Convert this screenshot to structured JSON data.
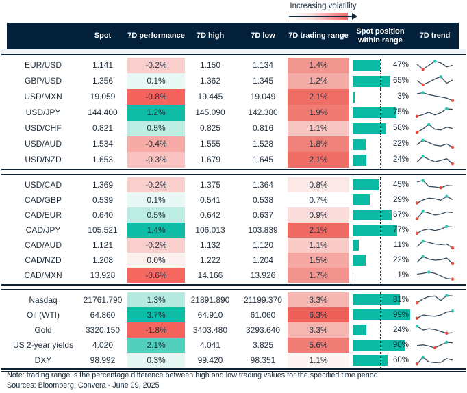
{
  "legend": {
    "label": "Increasing volatility"
  },
  "colors": {
    "header_bg": "#03213a",
    "bar_teal": "#0cbaa4",
    "spark_line": "#33475a",
    "dot_min": "#e74c3c",
    "dot_max": "#2cc6b2",
    "strong_teal": "#0fbca6",
    "strong_red": "#f4635c"
  },
  "chart_data": {
    "type": "table",
    "columns": [
      "",
      "Spot",
      "7D performance",
      "7D high",
      "7D low",
      "7D trading range",
      "Spot position within range",
      "7D trend"
    ],
    "groups": [
      {
        "rows": [
          {
            "label": "EUR/USD",
            "spot": "1.141",
            "perf": "-0.2%",
            "perf_color": "#f9cfce",
            "high": "1.150",
            "low": "1.134",
            "range": "1.4%",
            "range_color": "#f0968f",
            "position_pct": 47,
            "position_label": "47%",
            "trend": [
              0.6,
              0.12,
              0.5,
              0.9,
              0.74,
              0.35,
              0.5
            ],
            "trend_min": 1,
            "trend_max": 3
          },
          {
            "label": "GBP/USD",
            "spot": "1.356",
            "perf": "0.1%",
            "perf_color": "#e8f8f4",
            "high": "1.362",
            "low": "1.345",
            "range": "1.2%",
            "range_color": "#f3aba5",
            "position_pct": 65,
            "position_label": "65%",
            "trend": [
              0.55,
              0.15,
              0.4,
              0.7,
              0.92,
              0.3,
              0.6
            ],
            "trend_min": 1,
            "trend_max": 4
          },
          {
            "label": "USD/MXN",
            "spot": "19.059",
            "perf": "-0.8%",
            "perf_color": "#f4635c",
            "high": "19.445",
            "low": "19.049",
            "range": "2.1%",
            "range_color": "#ee6e66",
            "position_pct": 3,
            "position_label": "3%",
            "trend": [
              0.8,
              0.9,
              0.72,
              0.6,
              0.5,
              0.38,
              0.15
            ],
            "trend_min": 6,
            "trend_max": 1
          },
          {
            "label": "USD/JPY",
            "spot": "144.400",
            "perf": "1.2%",
            "perf_color": "#0fbca6",
            "high": "145.090",
            "low": "142.380",
            "range": "1.9%",
            "range_color": "#ef7b73",
            "position_pct": 75,
            "position_label": "75%",
            "trend": [
              0.15,
              0.32,
              0.55,
              0.28,
              0.5,
              0.88,
              0.82
            ],
            "trend_min": 0,
            "trend_max": 5
          },
          {
            "label": "USD/CHF",
            "spot": "0.821",
            "perf": "0.5%",
            "perf_color": "#bdece2",
            "high": "0.825",
            "low": "0.816",
            "range": "1.1%",
            "range_color": "#f7c6c2",
            "position_pct": 58,
            "position_label": "58%",
            "trend": [
              0.12,
              0.45,
              0.88,
              0.42,
              0.35,
              0.62,
              0.5
            ],
            "trend_min": 0,
            "trend_max": 2
          },
          {
            "label": "USD/AUD",
            "spot": "1.534",
            "perf": "-0.4%",
            "perf_color": "#f5aaa5",
            "high": "1.555",
            "low": "1.528",
            "range": "1.8%",
            "range_color": "#ef837b",
            "position_pct": 22,
            "position_label": "22%",
            "trend": [
              0.45,
              0.88,
              0.65,
              0.4,
              0.32,
              0.52,
              0.2
            ],
            "trend_min": 6,
            "trend_max": 1
          },
          {
            "label": "USD/NZD",
            "spot": "1.653",
            "perf": "-0.3%",
            "perf_color": "#f8c3c0",
            "high": "1.679",
            "low": "1.645",
            "range": "2.1%",
            "range_color": "#ee6e66",
            "position_pct": 24,
            "position_label": "24%",
            "trend": [
              0.3,
              0.85,
              0.55,
              0.32,
              0.45,
              0.62,
              0.12
            ],
            "trend_min": 6,
            "trend_max": 1
          }
        ]
      },
      {
        "rows": [
          {
            "label": "USD/CAD",
            "spot": "1.369",
            "perf": "-0.2%",
            "perf_color": "#f9cfce",
            "high": "1.375",
            "low": "1.364",
            "range": "0.8%",
            "range_color": "#fce9e7",
            "position_pct": 45,
            "position_label": "45%",
            "trend": [
              0.78,
              0.92,
              0.35,
              0.3,
              0.22,
              0.45,
              0.4
            ],
            "trend_min": 4,
            "trend_max": 1
          },
          {
            "label": "CAD/GBP",
            "spot": "0.539",
            "perf": "0.1%",
            "perf_color": "#e8f8f4",
            "high": "0.541",
            "low": "0.538",
            "range": "0.7%",
            "range_color": "#ffffff",
            "position_pct": 29,
            "position_label": "29%",
            "trend": [
              0.2,
              0.5,
              0.68,
              0.62,
              0.48,
              0.85,
              0.55
            ],
            "trend_min": 0,
            "trend_max": 5
          },
          {
            "label": "CAD/EUR",
            "spot": "0.640",
            "perf": "0.5%",
            "perf_color": "#bdece2",
            "high": "0.642",
            "low": "0.637",
            "range": "0.9%",
            "range_color": "#fbdedb",
            "position_pct": 67,
            "position_label": "67%",
            "trend": [
              0.15,
              0.85,
              0.7,
              0.5,
              0.6,
              0.8,
              0.75
            ],
            "trend_min": 0,
            "trend_max": 1
          },
          {
            "label": "CAD/JPY",
            "spot": "105.521",
            "perf": "1.4%",
            "perf_color": "#0fbca6",
            "high": "106.013",
            "low": "103.839",
            "range": "2.1%",
            "range_color": "#ee6a62",
            "position_pct": 77,
            "position_label": "77%",
            "trend": [
              0.18,
              0.48,
              0.6,
              0.45,
              0.58,
              0.85,
              0.8
            ],
            "trend_min": 0,
            "trend_max": 5
          },
          {
            "label": "CAD/AUD",
            "spot": "1.121",
            "perf": "-0.2%",
            "perf_color": "#f9cfce",
            "high": "1.132",
            "low": "1.120",
            "range": "1.1%",
            "range_color": "#f8cbc7",
            "position_pct": 11,
            "position_label": "11%",
            "trend": [
              0.35,
              0.88,
              0.75,
              0.6,
              0.55,
              0.6,
              0.22
            ],
            "trend_min": 6,
            "trend_max": 1
          },
          {
            "label": "CAD/NZD",
            "spot": "1.208",
            "perf": "0.0%",
            "perf_color": "#fdf1ef",
            "high": "1.222",
            "low": "1.204",
            "range": "1.5%",
            "range_color": "#f5a8a1",
            "position_pct": 22,
            "position_label": "22%",
            "trend": [
              0.3,
              0.85,
              0.6,
              0.5,
              0.55,
              0.7,
              0.18
            ],
            "trend_min": 6,
            "trend_max": 1
          },
          {
            "label": "CAD/MXN",
            "spot": "13.928",
            "perf": "-0.6%",
            "perf_color": "#f4685f",
            "high": "14.166",
            "low": "13.926",
            "range": "1.7%",
            "range_color": "#f2948d",
            "position_pct": 1,
            "position_label": "1%",
            "trend": [
              0.6,
              0.68,
              0.8,
              0.68,
              0.45,
              0.18,
              0.12
            ],
            "trend_min": 6,
            "trend_max": 2
          }
        ]
      },
      {
        "rows": [
          {
            "label": "Nasdaq",
            "spot": "21761.790",
            "perf": "1.3%",
            "perf_color": "#b5eae0",
            "high": "21891.890",
            "low": "21199.370",
            "range": "3.3%",
            "range_color": "#f6b7b2",
            "position_pct": 81,
            "position_label": "81%",
            "trend": [
              0.22,
              0.6,
              0.82,
              0.88,
              0.45,
              0.92,
              0.88
            ],
            "trend_min": 0,
            "trend_max": 5
          },
          {
            "label": "Oil (WTI)",
            "spot": "64.860",
            "perf": "3.7%",
            "perf_color": "#0fbca6",
            "high": "64.910",
            "low": "61.060",
            "range": "6.3%",
            "range_color": "#ed615a",
            "position_pct": 99,
            "position_label": "99%",
            "trend": [
              0.18,
              0.5,
              0.42,
              0.38,
              0.5,
              0.78,
              0.88
            ],
            "trend_min": 0,
            "trend_max": 6
          },
          {
            "label": "Gold",
            "spot": "3320.150",
            "perf": "-1.8%",
            "perf_color": "#f4635c",
            "high": "3403.480",
            "low": "3293.640",
            "range": "3.3%",
            "range_color": "#f6b7b2",
            "position_pct": 24,
            "position_label": "24%",
            "trend": [
              0.88,
              0.5,
              0.62,
              0.55,
              0.35,
              0.18,
              0.22
            ],
            "trend_min": 5,
            "trend_max": 0
          },
          {
            "label": "US 2-year yields",
            "spot": "4.020",
            "perf": "2.1%",
            "perf_color": "#52d0bd",
            "high": "4.041",
            "low": "3.825",
            "range": "5.6%",
            "range_color": "#ef7d75",
            "position_pct": 90,
            "position_label": "90%",
            "trend": [
              0.45,
              0.52,
              0.4,
              0.22,
              0.5,
              0.78,
              0.72
            ],
            "trend_min": 3,
            "trend_max": 5
          },
          {
            "label": "DXY",
            "spot": "98.992",
            "perf": "0.3%",
            "perf_color": "#e5f7f2",
            "high": "99.420",
            "low": "98.351",
            "range": "1.1%",
            "range_color": "#fdf4f3",
            "position_pct": 60,
            "position_label": "60%",
            "trend": [
              0.15,
              0.78,
              0.35,
              0.28,
              0.3,
              0.65,
              0.5
            ],
            "trend_min": 0,
            "trend_max": 1
          }
        ]
      }
    ],
    "note": "Note: trading range is the percentage difference between high and low trading values for the specified time period.",
    "sources": "Sources: Bloomberg, Convera - June 09, 2025"
  }
}
